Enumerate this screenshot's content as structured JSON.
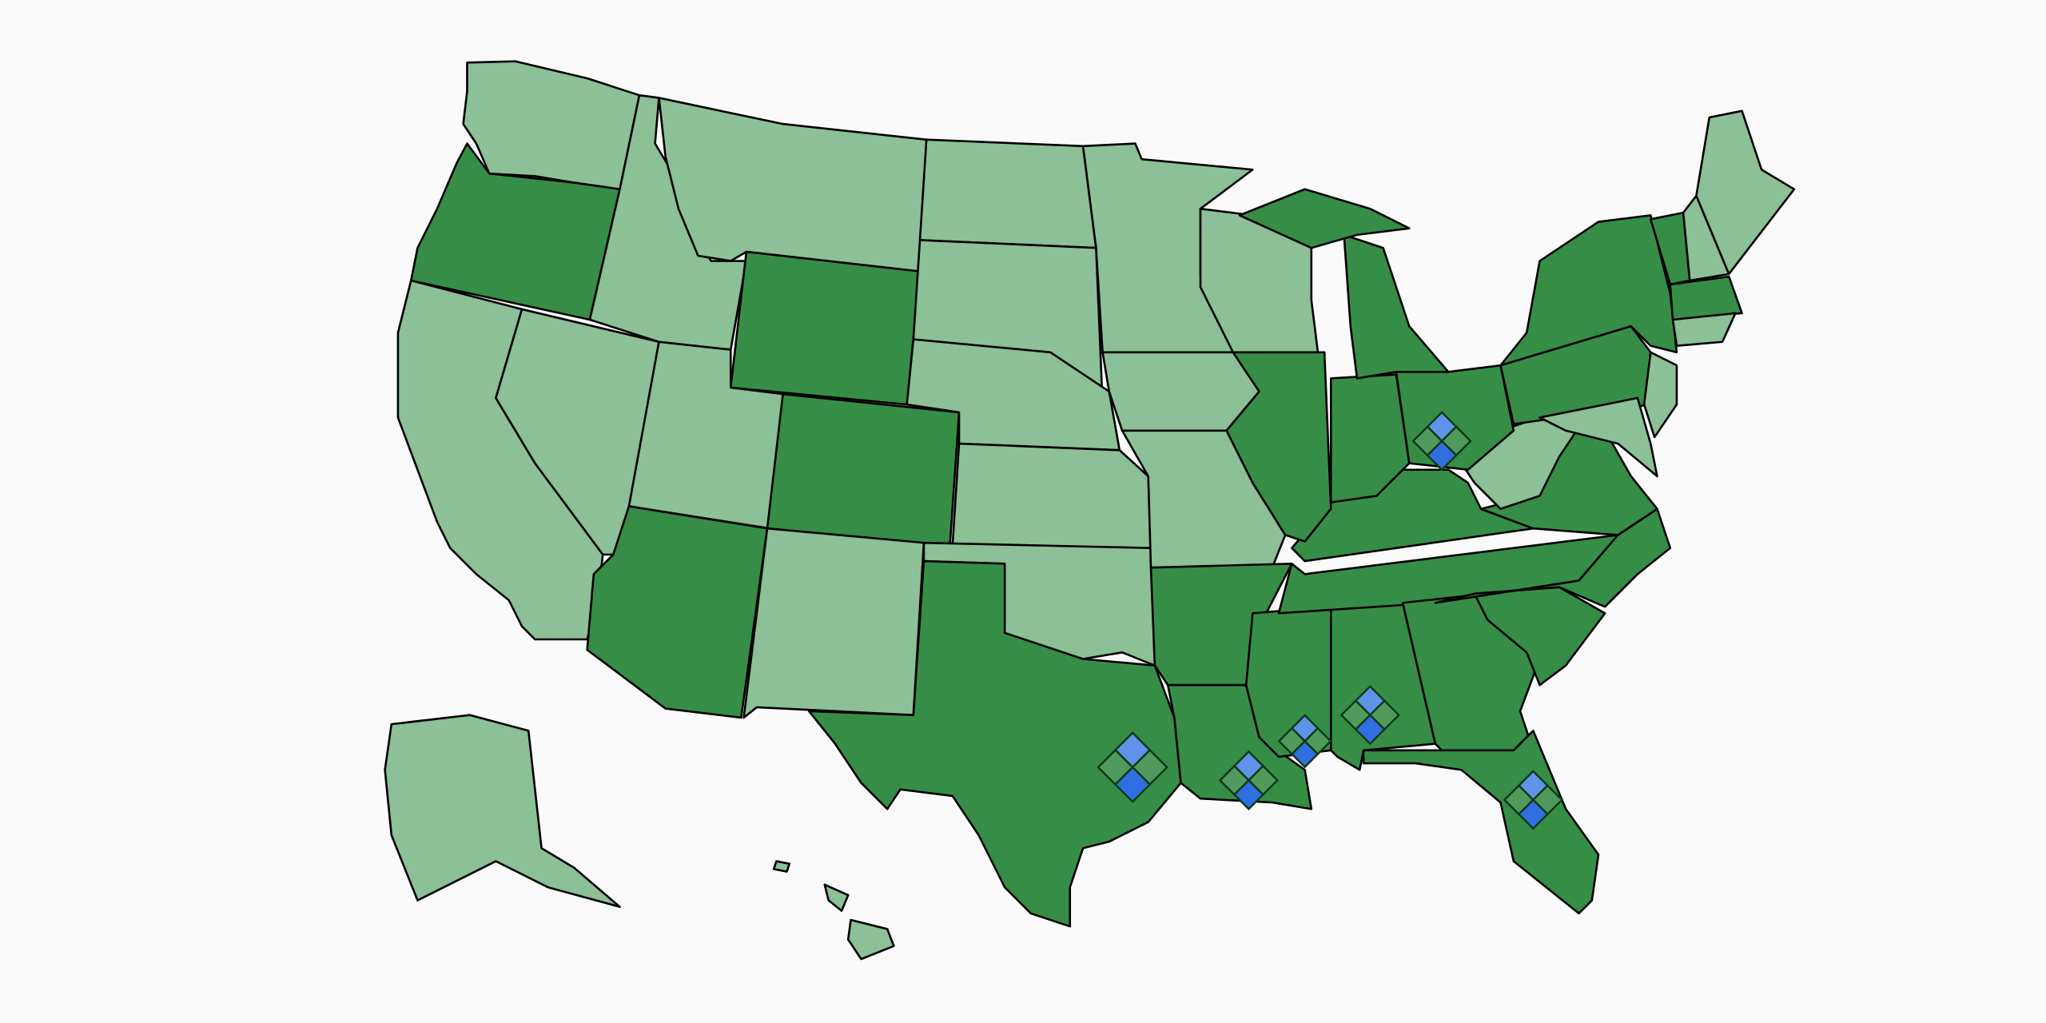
{
  "map": {
    "background": "#fafafa",
    "colors": {
      "dark": "#368e46",
      "light": "#8cc096",
      "border": "#000000"
    },
    "states": [
      {
        "id": "WA",
        "shade": "light"
      },
      {
        "id": "OR",
        "shade": "dark"
      },
      {
        "id": "CA",
        "shade": "light"
      },
      {
        "id": "NV",
        "shade": "light"
      },
      {
        "id": "ID",
        "shade": "light"
      },
      {
        "id": "MT",
        "shade": "light"
      },
      {
        "id": "WY",
        "shade": "dark"
      },
      {
        "id": "UT",
        "shade": "light"
      },
      {
        "id": "CO",
        "shade": "dark"
      },
      {
        "id": "AZ",
        "shade": "dark"
      },
      {
        "id": "NM",
        "shade": "light"
      },
      {
        "id": "ND",
        "shade": "light"
      },
      {
        "id": "SD",
        "shade": "light"
      },
      {
        "id": "NE",
        "shade": "light"
      },
      {
        "id": "KS",
        "shade": "light"
      },
      {
        "id": "OK",
        "shade": "light"
      },
      {
        "id": "TX",
        "shade": "dark"
      },
      {
        "id": "MN",
        "shade": "light"
      },
      {
        "id": "IA",
        "shade": "light"
      },
      {
        "id": "MO",
        "shade": "light"
      },
      {
        "id": "AR",
        "shade": "dark"
      },
      {
        "id": "LA",
        "shade": "dark"
      },
      {
        "id": "MS",
        "shade": "dark"
      },
      {
        "id": "AL",
        "shade": "dark"
      },
      {
        "id": "TN",
        "shade": "dark"
      },
      {
        "id": "KY",
        "shade": "dark"
      },
      {
        "id": "GA",
        "shade": "dark"
      },
      {
        "id": "FL",
        "shade": "dark"
      },
      {
        "id": "SC",
        "shade": "dark"
      },
      {
        "id": "NC",
        "shade": "dark"
      },
      {
        "id": "VA",
        "shade": "dark"
      },
      {
        "id": "WV",
        "shade": "light"
      },
      {
        "id": "OH",
        "shade": "dark"
      },
      {
        "id": "IN",
        "shade": "dark"
      },
      {
        "id": "IL",
        "shade": "dark"
      },
      {
        "id": "WI",
        "shade": "light"
      },
      {
        "id": "MI",
        "shade": "dark"
      },
      {
        "id": "MIU",
        "shade": "dark"
      },
      {
        "id": "PA",
        "shade": "dark"
      },
      {
        "id": "NY",
        "shade": "dark"
      },
      {
        "id": "NJ",
        "shade": "light"
      },
      {
        "id": "MD",
        "shade": "light"
      },
      {
        "id": "VT",
        "shade": "dark"
      },
      {
        "id": "NH",
        "shade": "light"
      },
      {
        "id": "ME",
        "shade": "light"
      },
      {
        "id": "MA",
        "shade": "dark"
      },
      {
        "id": "CT",
        "shade": "light"
      },
      {
        "id": "AK",
        "shade": "light"
      },
      {
        "id": "HI1",
        "shade": "light"
      },
      {
        "id": "HI2",
        "shade": "light"
      },
      {
        "id": "HI3",
        "shade": "light"
      }
    ],
    "markers": [
      {
        "state": "OH",
        "icon": "four-diamond-logo-icon"
      },
      {
        "state": "TX",
        "icon": "four-diamond-logo-icon"
      },
      {
        "state": "LA",
        "icon": "four-diamond-logo-icon"
      },
      {
        "state": "MS",
        "icon": "four-diamond-logo-icon"
      },
      {
        "state": "AL",
        "icon": "four-diamond-logo-icon"
      },
      {
        "state": "FL",
        "icon": "four-diamond-logo-icon"
      }
    ]
  }
}
